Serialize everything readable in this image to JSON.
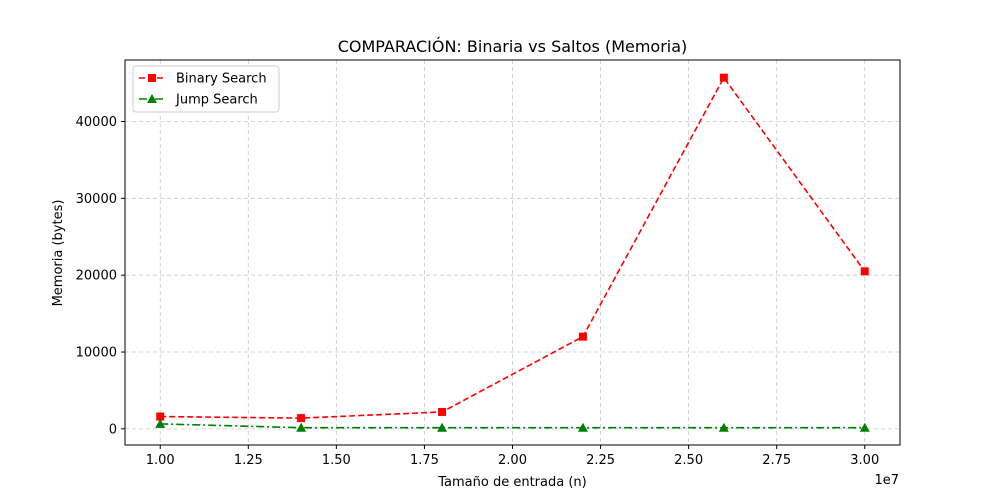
{
  "chart_data": {
    "type": "line",
    "title": "COMPARACIÓN: Binaria vs Saltos (Memoria)",
    "xlabel": "Tamaño de entrada (n)",
    "ylabel": "Memoria (bytes)",
    "x_scale_label": "1e7",
    "x": [
      10000000,
      14000000,
      18000000,
      22000000,
      26000000,
      30000000
    ],
    "xlim": [
      9000000,
      31000000
    ],
    "ylim": [
      -2100,
      48000
    ],
    "x_ticks": [
      10000000,
      12500000,
      15000000,
      17500000,
      20000000,
      22500000,
      25000000,
      27500000,
      30000000
    ],
    "x_tick_labels": [
      "1.00",
      "1.25",
      "1.50",
      "1.75",
      "2.00",
      "2.25",
      "2.50",
      "2.75",
      "3.00"
    ],
    "y_ticks": [
      0,
      10000,
      20000,
      30000,
      40000
    ],
    "y_tick_labels": [
      "0",
      "10000",
      "20000",
      "30000",
      "40000"
    ],
    "grid": true,
    "legend_position": "top-left",
    "series": [
      {
        "name": "Binary Search",
        "values": [
          1600,
          1400,
          2200,
          12000,
          45700,
          20500
        ],
        "color": "#ff0000",
        "marker": "square",
        "linestyle": "dashed"
      },
      {
        "name": "Jump Search",
        "values": [
          650,
          150,
          150,
          150,
          150,
          150
        ],
        "color": "#008000",
        "marker": "triangle",
        "linestyle": "dashdot"
      }
    ]
  }
}
